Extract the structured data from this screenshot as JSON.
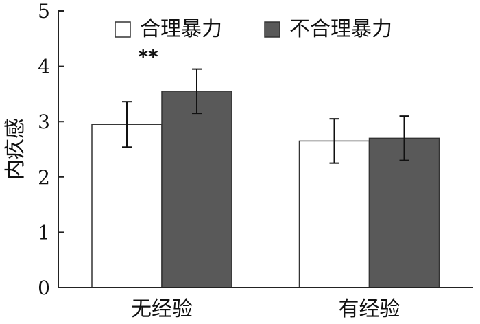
{
  "chart_data": {
    "type": "bar",
    "title": "",
    "xlabel": "",
    "ylabel": "内疚感",
    "ylim": [
      0,
      5
    ],
    "yticks": [
      0,
      1,
      2,
      3,
      4,
      5
    ],
    "grid": false,
    "legend_position": "top",
    "categories": [
      "无经验",
      "有经验"
    ],
    "series": [
      {
        "name": "合理暴力",
        "values": [
          2.95,
          2.65
        ],
        "errors": [
          0.41,
          0.4
        ],
        "fill": "#ffffff",
        "stroke": "#333333"
      },
      {
        "name": "不合理暴力",
        "values": [
          3.55,
          2.7
        ],
        "errors": [
          0.4,
          0.4
        ],
        "fill": "#595959",
        "stroke": "#333333"
      }
    ],
    "annotations": [
      {
        "text": "**",
        "category_index": 0
      }
    ]
  }
}
